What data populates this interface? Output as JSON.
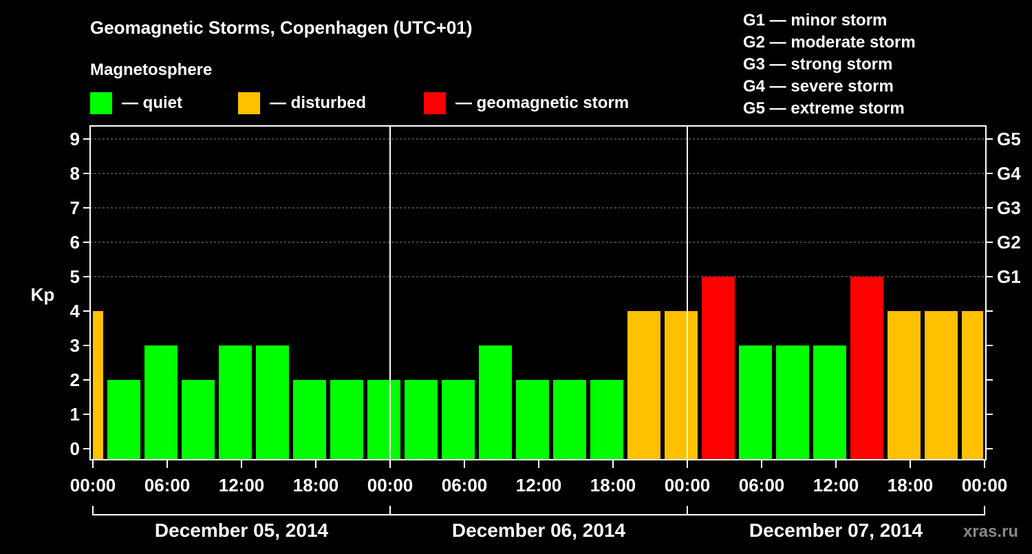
{
  "chart_data": {
    "type": "bar",
    "title": "Geomagnetic Storms, Copenhagen (UTC+01)",
    "legend_title": "Magnetosphere",
    "legend": [
      {
        "label": "— quiet",
        "color": "#00ff00"
      },
      {
        "label": "— disturbed",
        "color": "#ffc000"
      },
      {
        "label": "— geomagnetic storm",
        "color": "#ff0000"
      }
    ],
    "scale_legend": [
      "G1 — minor storm",
      "G2 — moderate storm",
      "G3 — strong storm",
      "G4 — severe storm",
      "G5 — extreme storm"
    ],
    "ylabel": "Kp",
    "ylim": [
      0,
      9
    ],
    "yticks": [
      "0",
      "1",
      "2",
      "3",
      "4",
      "5",
      "6",
      "7",
      "8",
      "9"
    ],
    "right_ticks": [
      {
        "kp": 5,
        "label": "G1"
      },
      {
        "kp": 6,
        "label": "G2"
      },
      {
        "kp": 7,
        "label": "G3"
      },
      {
        "kp": 8,
        "label": "G4"
      },
      {
        "kp": 9,
        "label": "G5"
      }
    ],
    "x_unit": "hours since Dec 05 00:00",
    "xlim": [
      0,
      72
    ],
    "xticks": [
      {
        "h": 0,
        "label": "00:00"
      },
      {
        "h": 6,
        "label": "06:00"
      },
      {
        "h": 12,
        "label": "12:00"
      },
      {
        "h": 18,
        "label": "18:00"
      },
      {
        "h": 24,
        "label": "00:00"
      },
      {
        "h": 30,
        "label": "06:00"
      },
      {
        "h": 36,
        "label": "12:00"
      },
      {
        "h": 42,
        "label": "18:00"
      },
      {
        "h": 48,
        "label": "00:00"
      },
      {
        "h": 54,
        "label": "06:00"
      },
      {
        "h": 60,
        "label": "12:00"
      },
      {
        "h": 66,
        "label": "18:00"
      },
      {
        "h": 72,
        "label": "00:00"
      }
    ],
    "days": [
      "December 05, 2014",
      "December 06, 2014",
      "December 07, 2014"
    ],
    "bars": [
      {
        "start": 0,
        "end": 1,
        "kp": 4
      },
      {
        "start": 1,
        "end": 4,
        "kp": 2
      },
      {
        "start": 4,
        "end": 7,
        "kp": 3
      },
      {
        "start": 7,
        "end": 10,
        "kp": 2
      },
      {
        "start": 10,
        "end": 13,
        "kp": 3
      },
      {
        "start": 13,
        "end": 16,
        "kp": 3
      },
      {
        "start": 16,
        "end": 19,
        "kp": 2
      },
      {
        "start": 19,
        "end": 22,
        "kp": 2
      },
      {
        "start": 22,
        "end": 25,
        "kp": 2
      },
      {
        "start": 25,
        "end": 28,
        "kp": 2
      },
      {
        "start": 28,
        "end": 31,
        "kp": 2
      },
      {
        "start": 31,
        "end": 34,
        "kp": 3
      },
      {
        "start": 34,
        "end": 37,
        "kp": 2
      },
      {
        "start": 37,
        "end": 40,
        "kp": 2
      },
      {
        "start": 40,
        "end": 43,
        "kp": 2
      },
      {
        "start": 43,
        "end": 46,
        "kp": 4
      },
      {
        "start": 46,
        "end": 49,
        "kp": 4
      },
      {
        "start": 49,
        "end": 52,
        "kp": 5
      },
      {
        "start": 52,
        "end": 55,
        "kp": 3
      },
      {
        "start": 55,
        "end": 58,
        "kp": 3
      },
      {
        "start": 58,
        "end": 61,
        "kp": 3
      },
      {
        "start": 61,
        "end": 64,
        "kp": 5
      },
      {
        "start": 64,
        "end": 67,
        "kp": 4
      },
      {
        "start": 67,
        "end": 70,
        "kp": 4
      },
      {
        "start": 70,
        "end": 72,
        "kp": 4
      }
    ],
    "watermark": "xras.ru"
  }
}
